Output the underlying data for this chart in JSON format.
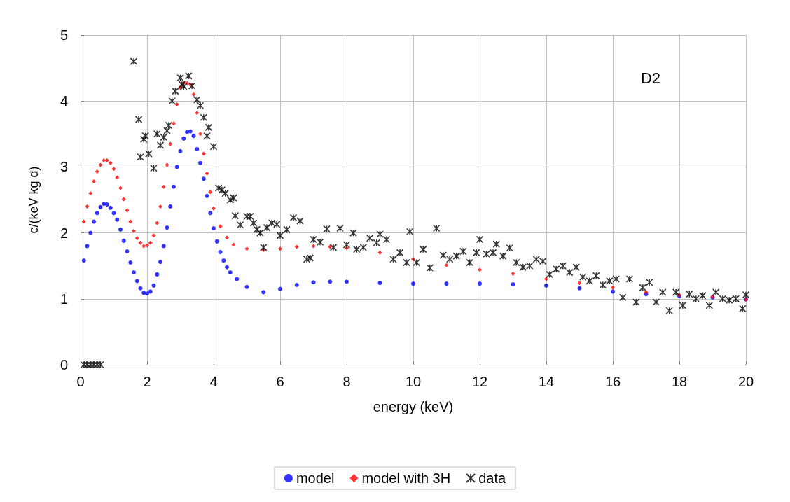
{
  "chart_data": {
    "type": "scatter",
    "xlabel": "energy (keV)",
    "ylabel": "c/(keV kg d)",
    "annotations": [
      "D2"
    ],
    "xlim": [
      0,
      20
    ],
    "xticks": [
      0,
      2,
      4,
      6,
      8,
      10,
      12,
      14,
      16,
      18,
      20
    ],
    "ylim": [
      0,
      5
    ],
    "yticks": [
      0,
      1,
      2,
      3,
      4,
      5
    ],
    "grid": true,
    "legend": "bottom",
    "series": [
      {
        "name": "model",
        "color": "#0000ff",
        "marker": "circle",
        "x": [
          0.1,
          0.2,
          0.3,
          0.4,
          0.5,
          0.6,
          0.7,
          0.8,
          0.9,
          1.0,
          1.1,
          1.2,
          1.3,
          1.4,
          1.5,
          1.6,
          1.7,
          1.8,
          1.9,
          2.0,
          2.1,
          2.2,
          2.3,
          2.4,
          2.5,
          2.6,
          2.7,
          2.8,
          2.9,
          3.0,
          3.1,
          3.2,
          3.3,
          3.4,
          3.5,
          3.6,
          3.7,
          3.8,
          3.9,
          4.0,
          4.1,
          4.2,
          4.3,
          4.4,
          4.5,
          4.7,
          5.0,
          5.5,
          6,
          6.5,
          7,
          7.5,
          8,
          9,
          10,
          11,
          12,
          13,
          14,
          15,
          16,
          17,
          18,
          19,
          20
        ],
        "values": [
          1.58,
          1.8,
          2.0,
          2.17,
          2.3,
          2.39,
          2.44,
          2.43,
          2.38,
          2.3,
          2.2,
          2.05,
          1.88,
          1.72,
          1.55,
          1.4,
          1.27,
          1.16,
          1.09,
          1.08,
          1.11,
          1.2,
          1.37,
          1.56,
          1.8,
          2.08,
          2.4,
          2.7,
          3.0,
          3.24,
          3.43,
          3.53,
          3.54,
          3.47,
          3.27,
          3.06,
          2.82,
          2.56,
          2.3,
          2.07,
          1.87,
          1.71,
          1.58,
          1.48,
          1.4,
          1.3,
          1.18,
          1.1,
          1.15,
          1.21,
          1.25,
          1.26,
          1.26,
          1.24,
          1.23,
          1.23,
          1.23,
          1.22,
          1.2,
          1.16,
          1.11,
          1.07,
          1.04,
          1.02,
          0.99
        ]
      },
      {
        "name": "model with 3H",
        "color": "#ff0000",
        "marker": "diamond",
        "x": [
          0.1,
          0.2,
          0.3,
          0.4,
          0.5,
          0.6,
          0.7,
          0.8,
          0.9,
          1.0,
          1.1,
          1.2,
          1.3,
          1.4,
          1.5,
          1.6,
          1.7,
          1.8,
          1.9,
          2.0,
          2.1,
          2.2,
          2.3,
          2.4,
          2.5,
          2.6,
          2.7,
          2.8,
          2.9,
          3.0,
          3.1,
          3.2,
          3.3,
          3.4,
          3.5,
          3.6,
          3.7,
          3.8,
          3.9,
          4.0,
          4.2,
          4.4,
          4.6,
          5.0,
          5.5,
          6,
          6.5,
          7,
          7.5,
          8,
          9,
          10,
          11,
          12,
          13,
          14,
          15,
          16,
          17,
          18,
          19,
          20
        ],
        "values": [
          2.17,
          2.4,
          2.6,
          2.78,
          2.93,
          3.03,
          3.1,
          3.1,
          3.06,
          2.97,
          2.84,
          2.68,
          2.51,
          2.34,
          2.17,
          2.03,
          1.92,
          1.85,
          1.8,
          1.81,
          1.85,
          1.96,
          2.15,
          2.4,
          2.7,
          3.03,
          3.35,
          3.66,
          3.95,
          4.2,
          4.27,
          4.27,
          4.25,
          4.1,
          3.82,
          3.5,
          3.2,
          2.9,
          2.62,
          2.37,
          2.1,
          1.93,
          1.82,
          1.76,
          1.74,
          1.76,
          1.79,
          1.8,
          1.79,
          1.77,
          1.7,
          1.6,
          1.51,
          1.44,
          1.38,
          1.3,
          1.24,
          1.17,
          1.1,
          1.06,
          1.03,
          0.99
        ]
      },
      {
        "name": "data",
        "color": "#000000",
        "marker": "cross",
        "x": [
          0.1,
          0.2,
          0.3,
          0.4,
          0.5,
          0.6,
          1.6,
          1.75,
          1.8,
          1.9,
          1.95,
          2.05,
          2.2,
          2.3,
          2.4,
          2.5,
          2.6,
          2.65,
          2.75,
          2.85,
          3.0,
          3.05,
          3.1,
          3.25,
          3.35,
          3.5,
          3.6,
          3.7,
          3.8,
          3.85,
          4.0,
          4.15,
          4.25,
          4.35,
          4.5,
          4.6,
          4.65,
          4.8,
          5.0,
          5.1,
          5.2,
          5.3,
          5.4,
          5.5,
          5.6,
          5.75,
          5.9,
          6.0,
          6.2,
          6.4,
          6.6,
          6.8,
          6.9,
          7.0,
          7.2,
          7.4,
          7.6,
          7.8,
          8.0,
          8.2,
          8.3,
          8.5,
          8.7,
          8.9,
          9.0,
          9.2,
          9.4,
          9.6,
          9.8,
          9.9,
          10.1,
          10.3,
          10.5,
          10.7,
          10.9,
          11.1,
          11.3,
          11.5,
          11.7,
          11.9,
          12.0,
          12.2,
          12.4,
          12.5,
          12.7,
          12.9,
          13.1,
          13.3,
          13.5,
          13.7,
          13.9,
          14.1,
          14.3,
          14.5,
          14.7,
          14.9,
          15.1,
          15.3,
          15.5,
          15.7,
          15.9,
          16.1,
          16.3,
          16.5,
          16.7,
          16.9,
          17.1,
          17.3,
          17.5,
          17.7,
          17.9,
          18.1,
          18.3,
          18.5,
          18.7,
          18.9,
          19.1,
          19.3,
          19.5,
          19.7,
          19.9,
          20.0
        ],
        "values": [
          0,
          0,
          0,
          0,
          0,
          0,
          4.6,
          3.72,
          3.15,
          3.42,
          3.47,
          3.2,
          2.98,
          3.5,
          3.33,
          3.45,
          3.55,
          3.63,
          4.0,
          4.15,
          4.35,
          4.25,
          4.22,
          4.38,
          4.23,
          4.02,
          3.93,
          3.75,
          3.47,
          3.6,
          3.31,
          2.68,
          2.65,
          2.6,
          2.5,
          2.53,
          2.26,
          2.12,
          2.25,
          2.25,
          2.15,
          2.05,
          2.0,
          1.78,
          2.08,
          2.15,
          2.13,
          1.96,
          2.05,
          2.23,
          2.18,
          1.6,
          1.62,
          1.9,
          1.86,
          2.06,
          1.78,
          2.07,
          1.82,
          2.0,
          1.75,
          1.78,
          1.92,
          1.85,
          1.98,
          1.9,
          1.6,
          1.7,
          1.55,
          2.02,
          1.55,
          1.75,
          1.47,
          2.07,
          1.66,
          1.6,
          1.65,
          1.72,
          1.55,
          1.7,
          1.9,
          1.68,
          1.7,
          1.83,
          1.65,
          1.77,
          1.55,
          1.48,
          1.5,
          1.6,
          1.57,
          1.37,
          1.45,
          1.5,
          1.4,
          1.48,
          1.33,
          1.27,
          1.35,
          1.21,
          1.27,
          1.3,
          1.02,
          1.3,
          0.95,
          1.17,
          1.25,
          0.95,
          1.1,
          0.82,
          1.1,
          0.9,
          1.07,
          1.0,
          1.05,
          0.9,
          1.1,
          1.0,
          0.98,
          1.0,
          0.85,
          1.06
        ]
      }
    ]
  }
}
